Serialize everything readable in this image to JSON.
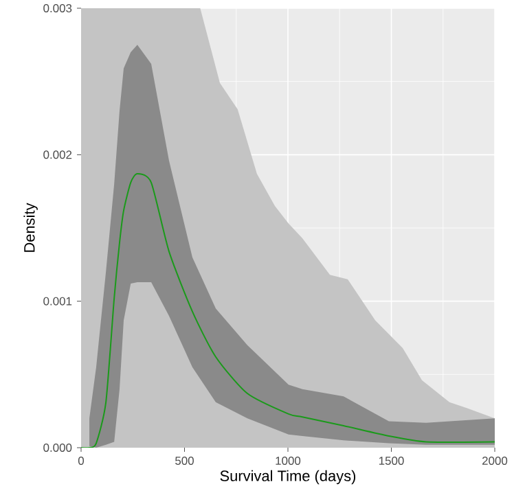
{
  "chart_data": {
    "type": "line",
    "xlabel": "Survival Time (days)",
    "ylabel": "Density",
    "xlim": [
      0,
      2000
    ],
    "ylim": [
      0,
      0.003
    ],
    "xticks": [
      0,
      500,
      1000,
      1500,
      2000
    ],
    "yticks": [
      {
        "value": 0,
        "label": "0.000"
      },
      {
        "value": 0.001,
        "label": "0.001"
      },
      {
        "value": 0.002,
        "label": "0.002"
      },
      {
        "value": 0.003,
        "label": "0.003"
      }
    ],
    "grid": true,
    "series": [
      {
        "type": "area",
        "color": "#c4c4c4",
        "x": [
          0,
          576,
          671,
          757,
          850,
          937,
          1003,
          1070,
          1203,
          1289,
          1422,
          1555,
          1648,
          1781,
          1867,
          2000
        ],
        "values": [
          0.003,
          0.003,
          0.00249,
          0.00231,
          0.00187,
          0.00165,
          0.00153,
          0.00143,
          0.00118,
          0.00115,
          0.00087,
          0.00068,
          0.00046,
          0.00031,
          0.00027,
          0.0002
        ]
      },
      {
        "color": "#1a9a1a",
        "x": [
          0,
          40,
          73,
          120,
          160,
          186,
          206,
          240,
          272,
          339,
          425,
          538,
          651,
          804,
          1003,
          1070,
          1269,
          1488,
          1668,
          2000
        ],
        "values": [
          0,
          0,
          3e-05,
          0.00031,
          0.00102,
          0.0014,
          0.00162,
          0.00181,
          0.00187,
          0.00181,
          0.00134,
          0.00093,
          0.00062,
          0.00037,
          0.00023,
          0.00021,
          0.00015,
          8e-05,
          4e-05,
          4e-05
        ],
        "lower": [
          null,
          1e-05,
          0,
          2e-05,
          4e-05,
          0.0004,
          0.00087,
          0.00112,
          0.00113,
          0.00113,
          0.0009,
          0.00055,
          0.00031,
          0.0002,
          9e-05,
          8e-05,
          5e-05,
          3e-05,
          2e-05,
          2e-05
        ],
        "upper": [
          null,
          0.0002,
          0.00055,
          0.0012,
          0.0018,
          0.0023,
          0.00259,
          0.0027,
          0.00275,
          0.00262,
          0.00196,
          0.0013,
          0.00095,
          0.0007,
          0.00043,
          0.0004,
          0.00035,
          0.00018,
          0.00017,
          0.0002
        ]
      }
    ]
  }
}
